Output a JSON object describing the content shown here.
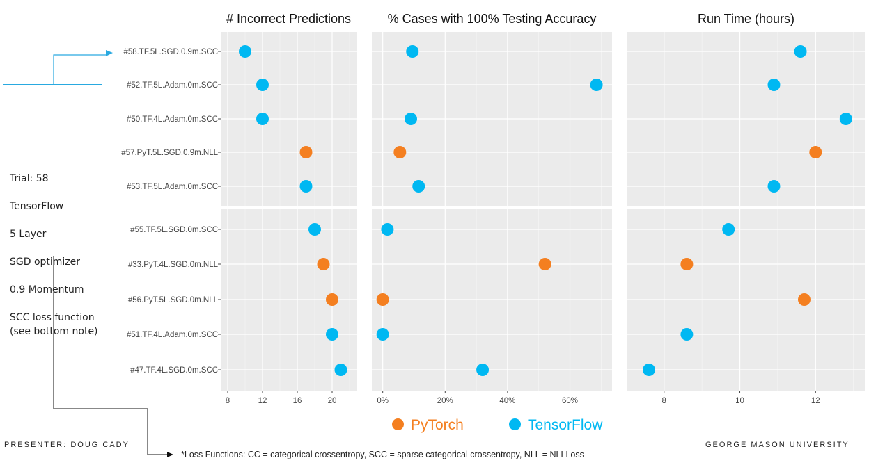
{
  "colors": {
    "pytorch": "#f47f20",
    "tensorflow": "#00b8f2",
    "panel_bg": "#ebebeb",
    "grid": "#ffffff",
    "callout_border": "#29a9e0"
  },
  "callout": {
    "lines": [
      "Trial: 58",
      "TensorFlow",
      "5 Layer",
      "SGD optimizer",
      "0.9 Momentum",
      "SCC loss function",
      "(see bottom note)"
    ]
  },
  "legend": {
    "pytorch": "PyTorch",
    "tensorflow": "TensorFlow"
  },
  "footer": {
    "presenter": "PRESENTER: DOUG CADY",
    "university": "GEORGE MASON UNIVERSITY",
    "note": "*Loss Functions: CC = categorical crossentropy, SCC = sparse categorical crossentropy, NLL = NLLLoss"
  },
  "chart_data": {
    "type": "scatter",
    "groups": [
      {
        "trials": [
          {
            "label": "#58.TF.5L.SGD.0.9m.SCC",
            "framework": "TensorFlow",
            "incorrect": 10,
            "pct100": 0.095,
            "runtime": 11.6
          },
          {
            "label": "#52.TF.5L.Adam.0m.SCC",
            "framework": "TensorFlow",
            "incorrect": 12,
            "pct100": 0.685,
            "runtime": 10.9
          },
          {
            "label": "#50.TF.4L.Adam.0m.SCC",
            "framework": "TensorFlow",
            "incorrect": 12,
            "pct100": 0.09,
            "runtime": 12.8
          },
          {
            "label": "#57.PyT.5L.SGD.0.9m.NLL",
            "framework": "PyTorch",
            "incorrect": 17,
            "pct100": 0.055,
            "runtime": 12.0
          },
          {
            "label": "#53.TF.5L.Adam.0m.SCC",
            "framework": "TensorFlow",
            "incorrect": 17,
            "pct100": 0.115,
            "runtime": 10.9
          }
        ]
      },
      {
        "trials": [
          {
            "label": "#55.TF.5L.SGD.0m.SCC",
            "framework": "TensorFlow",
            "incorrect": 18,
            "pct100": 0.015,
            "runtime": 9.7
          },
          {
            "label": "#33.PyT.4L.SGD.0m.NLL",
            "framework": "PyTorch",
            "incorrect": 19,
            "pct100": 0.52,
            "runtime": 8.6
          },
          {
            "label": "#56.PyT.5L.SGD.0m.NLL",
            "framework": "PyTorch",
            "incorrect": 20,
            "pct100": 0.0,
            "runtime": 11.7
          },
          {
            "label": "#51.TF.4L.Adam.0m.SCC",
            "framework": "TensorFlow",
            "incorrect": 20,
            "pct100": 0.0,
            "runtime": 8.6
          },
          {
            "label": "#47.TF.4L.SGD.0m.SCC",
            "framework": "TensorFlow",
            "incorrect": 21,
            "pct100": 0.32,
            "runtime": 7.6
          }
        ]
      }
    ],
    "panels": [
      {
        "key": "incorrect",
        "title": "# Incorrect Predictions",
        "xlim": [
          7.2,
          22.8
        ],
        "ticks": [
          8,
          12,
          16,
          20
        ],
        "tick_labels": [
          "8",
          "12",
          "16",
          "20"
        ]
      },
      {
        "key": "pct100",
        "title": "% Cases with 100% Testing Accuracy",
        "xlim": [
          -0.035,
          0.735
        ],
        "ticks": [
          0,
          0.2,
          0.4,
          0.6
        ],
        "tick_labels": [
          "0%",
          "20%",
          "40%",
          "60%"
        ]
      },
      {
        "key": "runtime",
        "title": "Run Time (hours)",
        "xlim": [
          7.03,
          13.3
        ],
        "ticks": [
          8,
          10,
          12
        ],
        "tick_labels": [
          "8",
          "10",
          "12"
        ]
      }
    ],
    "legend_position": "bottom",
    "grid": true
  }
}
